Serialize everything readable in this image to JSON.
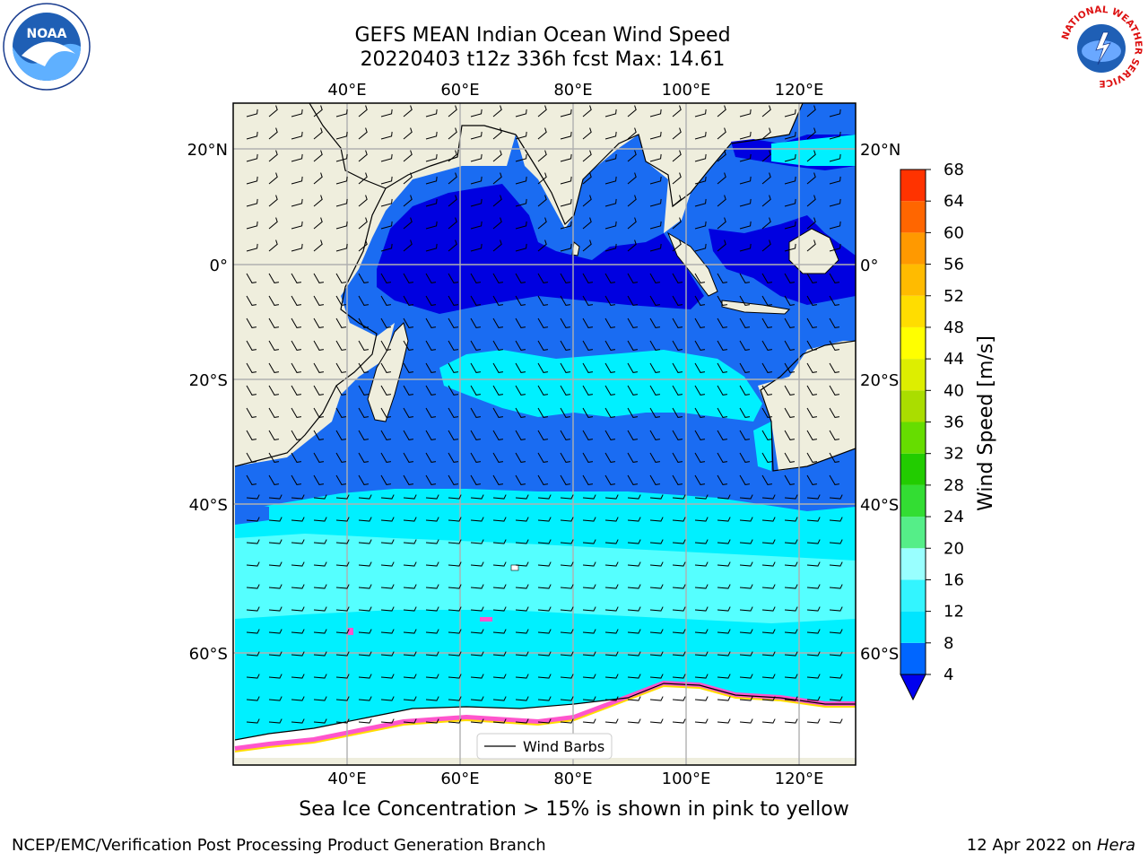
{
  "title_line1": "GEFS MEAN Indian Ocean Wind Speed",
  "title_line2": "20220403 t12z 336h fcst   Max: 14.61",
  "caption": "Sea Ice Concentration > 15% is shown in pink to yellow",
  "footer_left": "NCEP/EMC/Verification Post Processing Product Generation Branch",
  "footer_date": "12 Apr 2022 on",
  "footer_machine": "Hera",
  "logos": {
    "left": "noaa-logo",
    "right": "nws-logo",
    "nws_ring_text": "NATIONAL WEATHER SERVICE"
  },
  "map": {
    "lon_ticks": [
      "40°E",
      "60°E",
      "80°E",
      "100°E",
      "120°E"
    ],
    "lat_ticks_left": [
      "20°N",
      "0°",
      "20°S",
      "40°S",
      "60°S"
    ],
    "lat_ticks_right": [
      "20°N",
      "0°",
      "20°S",
      "40°S",
      "60°S"
    ],
    "legend_label": "Wind Barbs"
  },
  "colorbar": {
    "label": "Wind Speed [m/s]",
    "ticks": [
      "4",
      "8",
      "12",
      "16",
      "20",
      "24",
      "28",
      "32",
      "36",
      "40",
      "44",
      "48",
      "52",
      "56",
      "60",
      "64",
      "68"
    ],
    "colors": [
      "#0066ff",
      "#00e5ff",
      "#33f5ff",
      "#99ffff",
      "#55ee88",
      "#33dd33",
      "#22cc00",
      "#66dd00",
      "#aadd00",
      "#ddee00",
      "#ffff00",
      "#ffdd00",
      "#ffbb00",
      "#ff9900",
      "#ff6600",
      "#ff3300",
      "#ff0000"
    ],
    "extend_color": "#0000ee"
  },
  "colors": {
    "land": "#efeedd",
    "ocean_low": "#0000e0",
    "ocean_mid": "#1a6cf2",
    "ocean_high": "#00f0ff",
    "ocean_cyan_light": "#55ffff",
    "ice": "#ff55cc"
  }
}
